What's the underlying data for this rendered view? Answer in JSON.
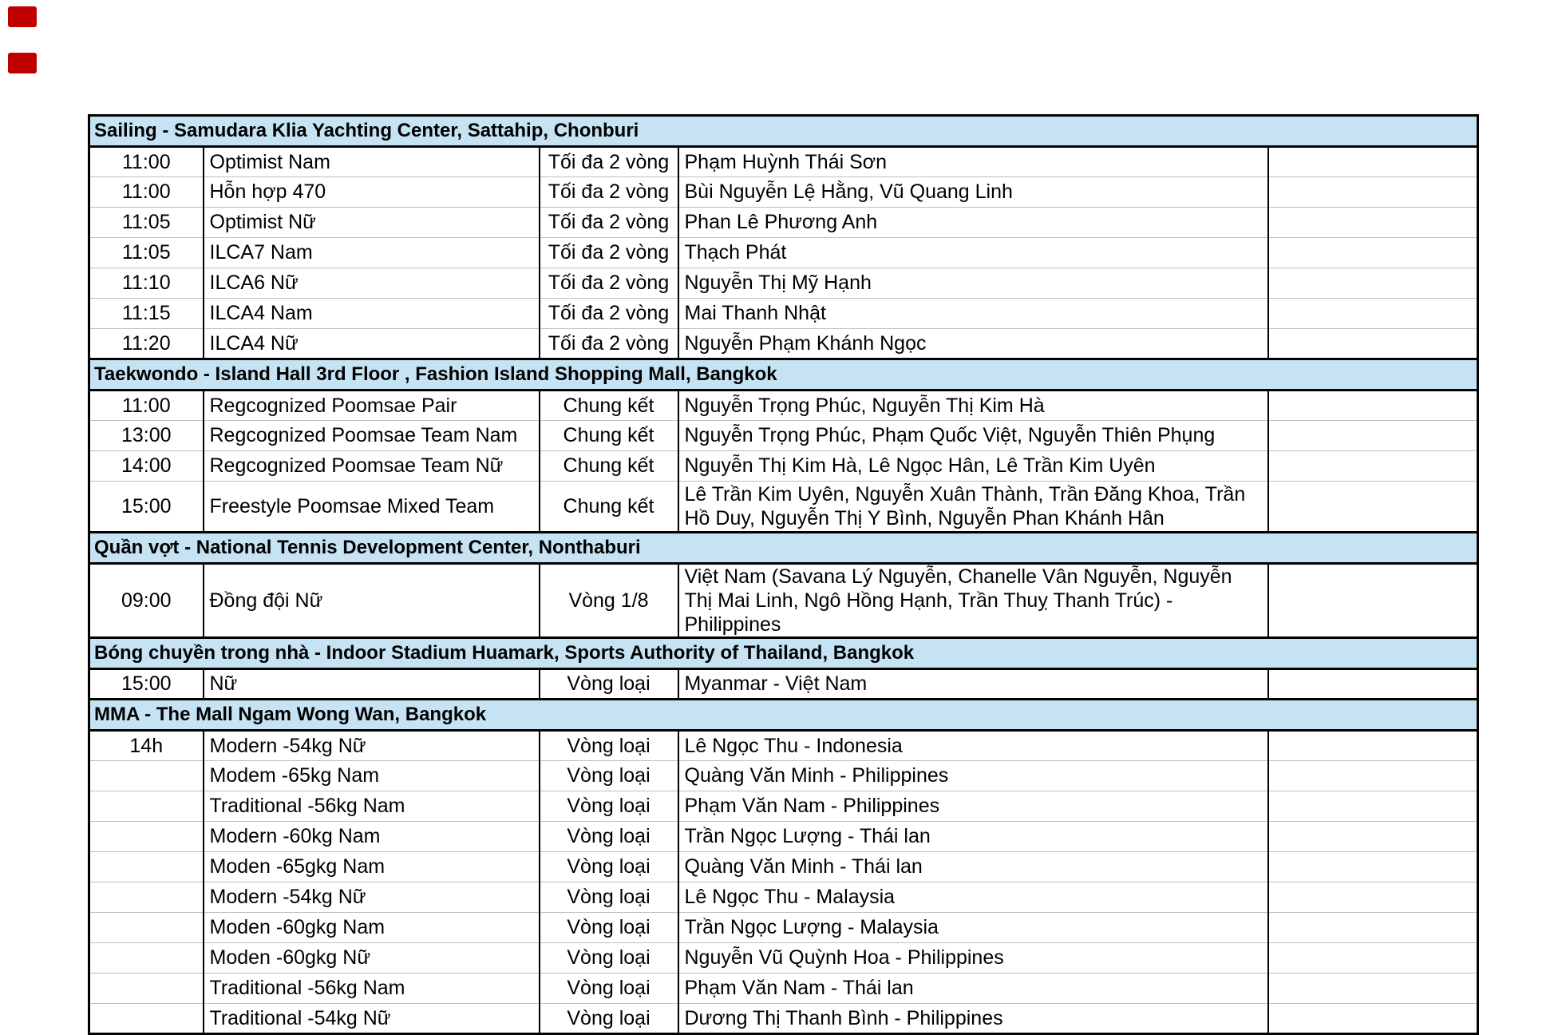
{
  "colors": {
    "header_bg": "#C6E3F4",
    "red_mark": "#C00000",
    "row_line": "#BFBFBF",
    "border": "#000000"
  },
  "sections": [
    {
      "title": "Sailing - Samudara Klia Yachting Center, Sattahip, Chonburi",
      "rows": [
        {
          "time": "11:00",
          "event": "Optimist Nam",
          "round": "Tối đa 2 vòng",
          "athletes": "Phạm Huỳnh Thái Sơn"
        },
        {
          "time": "11:00",
          "event": "Hỗn hợp 470",
          "round": "Tối đa 2 vòng",
          "athletes": "Bùi Nguyễn Lệ Hằng, Vũ Quang Linh"
        },
        {
          "time": "11:05",
          "event": "Optimist Nữ",
          "round": "Tối đa 2 vòng",
          "athletes": "Phan Lê Phương Anh"
        },
        {
          "time": "11:05",
          "event": "ILCA7 Nam",
          "round": "Tối đa 2 vòng",
          "athletes": "Thạch Phát"
        },
        {
          "time": "11:10",
          "event": "ILCA6 Nữ",
          "round": "Tối đa 2 vòng",
          "athletes": "Nguyễn Thị Mỹ Hạnh"
        },
        {
          "time": "11:15",
          "event": "ILCA4 Nam",
          "round": "Tối đa 2 vòng",
          "athletes": "Mai Thanh Nhật"
        },
        {
          "time": "11:20",
          "event": "ILCA4 Nữ",
          "round": "Tối đa 2 vòng",
          "athletes": "Nguyễn Phạm Khánh Ngọc"
        }
      ]
    },
    {
      "title": "Taekwondo - Island Hall 3rd Floor , Fashion Island Shopping Mall, Bangkok",
      "rows": [
        {
          "time": "11:00",
          "event": "Regcognized Poomsae Pair",
          "round": "Chung kết",
          "athletes": "Nguyễn Trọng Phúc, Nguyễn Thị Kim Hà"
        },
        {
          "time": "13:00",
          "event": "Regcognized Poomsae Team Nam",
          "round": "Chung kết",
          "athletes": "Nguyễn Trọng Phúc, Phạm Quốc Việt, Nguyễn Thiên Phụng"
        },
        {
          "time": "14:00",
          "event": "Regcognized Poomsae Team Nữ",
          "round": "Chung kết",
          "athletes": "Nguyễn Thị Kim Hà, Lê Ngọc Hân, Lê Trần Kim Uyên"
        },
        {
          "time": "15:00",
          "event": "Freestyle Poomsae Mixed Team",
          "round": "Chung kết",
          "athletes": "Lê Trần Kim Uyên, Nguyễn Xuân Thành, Trần Đăng Khoa, Trần Hồ Duy, Nguyễn Thị Y Bình, Nguyễn Phan Khánh Hân",
          "tall": true,
          "height": 64
        }
      ]
    },
    {
      "title": "Quần vợt - National Tennis Development Center, Nonthaburi",
      "rows": [
        {
          "time": "09:00",
          "event": "Đồng đội Nữ",
          "round": "Vòng 1/8",
          "athletes": "Việt Nam (Savana Lý Nguyễn, Chanelle Vân Nguyễn, Nguyễn Thị Mai Linh, Ngô Hồng Hạnh, Trần Thuỵ Thanh Trúc) - Philippines",
          "tall": true,
          "height": 82
        }
      ]
    },
    {
      "title": "Bóng chuyền trong nhà - Indoor Stadium Huamark, Sports Authority of Thailand, Bangkok",
      "rows": [
        {
          "time": "15:00",
          "event": "Nữ",
          "round": "Vòng loại",
          "athletes": "Myanmar - Việt Nam"
        }
      ]
    },
    {
      "title": "MMA - The Mall Ngam Wong Wan, Bangkok",
      "rows": [
        {
          "time": "14h",
          "event": "Modern -54kg Nữ",
          "round": "Vòng loại",
          "athletes": "Lê Ngọc Thu - Indonesia"
        },
        {
          "time": "",
          "event": "Modem -65kg Nam",
          "round": "Vòng loại",
          "athletes": "Quàng Văn Minh - Philippines"
        },
        {
          "time": "",
          "event": "Traditional -56kg Nam",
          "round": "Vòng loại",
          "athletes": "Phạm Văn Nam - Philippines"
        },
        {
          "time": "",
          "event": "Modern -60kg Nam",
          "round": "Vòng loại",
          "athletes": "Trần Ngọc Lượng - Thái lan"
        },
        {
          "time": "",
          "event": "Moden -65gkg Nam",
          "round": "Vòng loại",
          "athletes": "Quàng Văn Minh - Thái lan"
        },
        {
          "time": "",
          "event": "Modern -54kg Nữ",
          "round": "Vòng loại",
          "athletes": "Lê Ngọc Thu - Malaysia"
        },
        {
          "time": "",
          "event": "Moden -60gkg Nam",
          "round": "Vòng loại",
          "athletes": "Trần Ngọc Lượng - Malaysia"
        },
        {
          "time": "",
          "event": "Moden -60gkg Nữ",
          "round": "Vòng loại",
          "athletes": "Nguyễn Vũ Quỳnh Hoa - Philippines"
        },
        {
          "time": "",
          "event": "Traditional -56kg Nam",
          "round": "Vòng loại",
          "athletes": "Phạm Văn Nam - Thái lan"
        },
        {
          "time": "",
          "event": "Traditional -54kg Nữ",
          "round": "Vòng loại",
          "athletes": "Dương Thị Thanh Bình - Philippines"
        }
      ]
    }
  ]
}
